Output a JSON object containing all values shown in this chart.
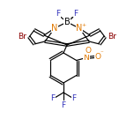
{
  "bg_color": "#ffffff",
  "bond_color": "#000000",
  "atom_colors": {
    "B": "#000000",
    "N": "#e07800",
    "Br": "#8b0000",
    "F": "#3333bb",
    "O": "#e07800",
    "C": "#000000"
  },
  "figsize": [
    1.52,
    1.52
  ],
  "dpi": 100
}
